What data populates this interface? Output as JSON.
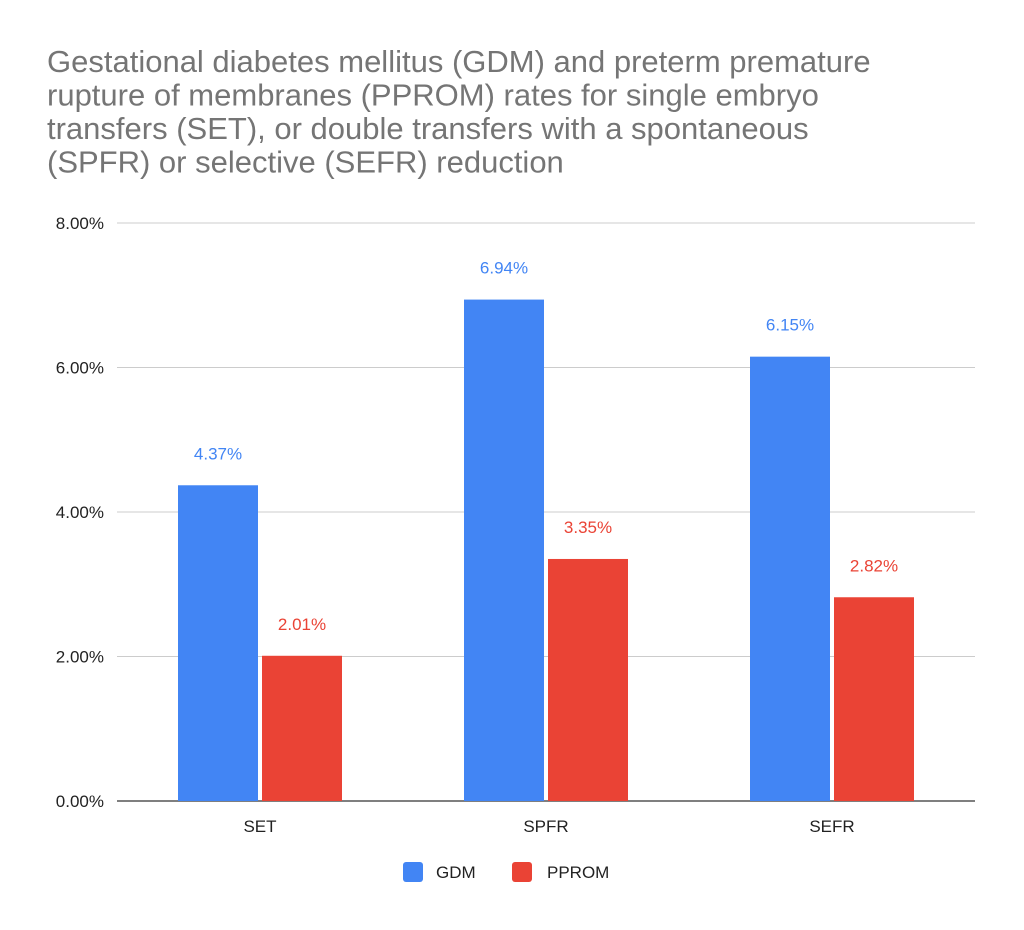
{
  "chart_data": {
    "type": "bar",
    "title": "Gestational diabetes mellitus (GDM) and preterm premature rupture of membranes (PPROM) rates for single embryo transfers (SET), or double transfers with a spontaneous (SPFR) or selective (SEFR) reduction",
    "title_lines": [
      "Gestational diabetes mellitus (GDM) and preterm premature",
      "rupture of membranes (PPROM) rates for single embryo",
      "transfers (SET), or double transfers with a spontaneous",
      "(SPFR) or selective (SEFR) reduction"
    ],
    "xlabel": "",
    "ylabel": "",
    "categories": [
      "SET",
      "SPFR",
      "SEFR"
    ],
    "series": [
      {
        "name": "GDM",
        "color": "#4285f4",
        "values": [
          4.37,
          6.94,
          6.15
        ],
        "labels": [
          "4.37%",
          "6.94%",
          "6.15%"
        ]
      },
      {
        "name": "PPROM",
        "color": "#ea4335",
        "values": [
          2.01,
          3.35,
          2.82
        ],
        "labels": [
          "2.01%",
          "3.35%",
          "2.82%"
        ]
      }
    ],
    "ylim": [
      0,
      8
    ],
    "yticks": [
      0,
      2,
      4,
      6,
      8
    ],
    "ytick_labels": [
      "0.00%",
      "2.00%",
      "4.00%",
      "6.00%",
      "8.00%"
    ],
    "grid": true,
    "legend_position": "bottom"
  }
}
